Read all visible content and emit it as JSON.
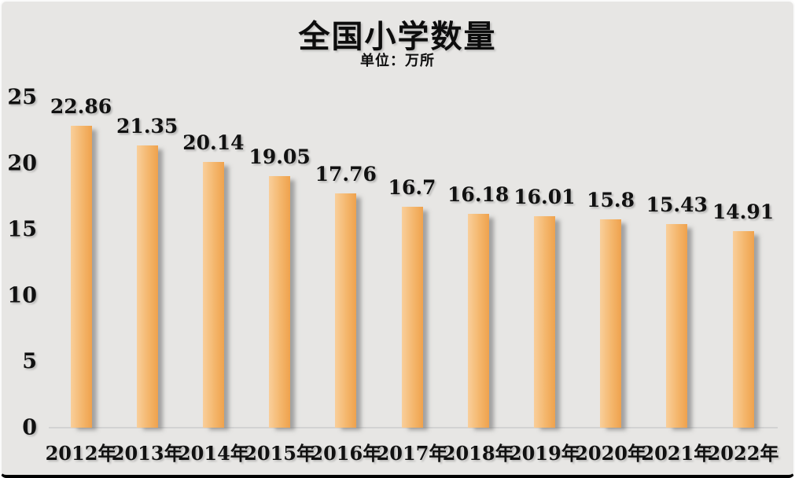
{
  "chart_data": {
    "type": "bar",
    "title": "全国小学数量",
    "subtitle": "单位：万所",
    "categories": [
      "2012年",
      "2013年",
      "2014年",
      "2015年",
      "2016年",
      "2017年",
      "2018年",
      "2019年",
      "2020年",
      "2021年",
      "2022年"
    ],
    "values": [
      22.86,
      21.35,
      20.14,
      19.05,
      17.76,
      16.7,
      16.18,
      16.01,
      15.8,
      15.43,
      14.91
    ],
    "value_labels": [
      "22.86",
      "21.35",
      "20.14",
      "19.05",
      "17.76",
      "16.7",
      "16.18",
      "16.01",
      "15.8",
      "15.43",
      "14.91"
    ],
    "xlabel": "",
    "ylabel": "",
    "ylim": [
      0,
      25
    ],
    "yticks": [
      0,
      5,
      10,
      15,
      20,
      25
    ],
    "grid": false,
    "legend": false,
    "colors": {
      "background": "#e7e6e4",
      "bar_gradient_left": "#f9cf9b",
      "bar_gradient_right": "#efa24d",
      "text": "#111111",
      "baseline": "#d2d2d2",
      "bottom_frame": "#000000"
    }
  }
}
